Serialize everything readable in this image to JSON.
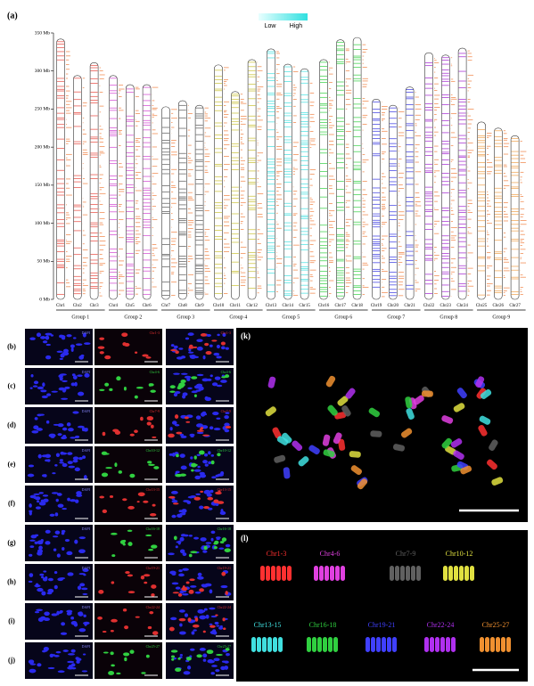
{
  "figure": {
    "panel_a": {
      "label": "(a)",
      "legend": {
        "low": "Low",
        "high": "High"
      },
      "ylim": [
        0,
        350
      ],
      "yticks": [
        {
          "value": 0,
          "label": "0 Mb"
        },
        {
          "value": 50,
          "label": "50 Mb"
        },
        {
          "value": 100,
          "label": "100 Mb"
        },
        {
          "value": 150,
          "label": "150 Mb"
        },
        {
          "value": 200,
          "label": "200 Mb"
        },
        {
          "value": 250,
          "label": "250 Mb"
        },
        {
          "value": 300,
          "label": "300 Mb"
        },
        {
          "value": 350,
          "label": "350 Mb"
        }
      ],
      "chromosomes": [
        {
          "name": "Chr1",
          "length": 342
        },
        {
          "name": "Chr2",
          "length": 294
        },
        {
          "name": "Chr3",
          "length": 311
        },
        {
          "name": "Chr4",
          "length": 294
        },
        {
          "name": "Chr5",
          "length": 282
        },
        {
          "name": "Chr6",
          "length": 282
        },
        {
          "name": "Chr7",
          "length": 253
        },
        {
          "name": "Chr8",
          "length": 261
        },
        {
          "name": "Chr9",
          "length": 255
        },
        {
          "name": "Chr10",
          "length": 308
        },
        {
          "name": "Chr11",
          "length": 273
        },
        {
          "name": "Chr12",
          "length": 315
        },
        {
          "name": "Chr13",
          "length": 329
        },
        {
          "name": "Chr14",
          "length": 309
        },
        {
          "name": "Chr15",
          "length": 303
        },
        {
          "name": "Chr16",
          "length": 315
        },
        {
          "name": "Chr17",
          "length": 341
        },
        {
          "name": "Chr18",
          "length": 344
        },
        {
          "name": "Chr19",
          "length": 263
        },
        {
          "name": "Chr20",
          "length": 255
        },
        {
          "name": "Chr21",
          "length": 279
        },
        {
          "name": "Chr22",
          "length": 324
        },
        {
          "name": "Chr23",
          "length": 321
        },
        {
          "name": "Chr24",
          "length": 330
        },
        {
          "name": "Chr25",
          "length": 233
        },
        {
          "name": "Chr26",
          "length": 225
        },
        {
          "name": "Chr27",
          "length": 215
        }
      ],
      "groups": [
        {
          "name": "Group 1",
          "color": "#e8453c"
        },
        {
          "name": "Group 2",
          "color": "#d040d0"
        },
        {
          "name": "Group 3",
          "color": "#555555"
        },
        {
          "name": "Group 4",
          "color": "#c8c030"
        },
        {
          "name": "Group 5",
          "color": "#40e0e0"
        },
        {
          "name": "Group 6",
          "color": "#30d040"
        },
        {
          "name": "Group 7",
          "color": "#3434e0"
        },
        {
          "name": "Group 8",
          "color": "#a020d0"
        },
        {
          "name": "Group 9",
          "color": "#f0a048"
        }
      ]
    },
    "fish_rows": [
      {
        "label": "(b)",
        "dapi": "DAPI",
        "probe": "Chr1-3",
        "color": "#e03030"
      },
      {
        "label": "(c)",
        "dapi": "DAPI",
        "probe": "Chr4-6",
        "color": "#30d040"
      },
      {
        "label": "(d)",
        "dapi": "DAPI",
        "probe": "Chr7-9",
        "color": "#e03030"
      },
      {
        "label": "(e)",
        "dapi": "DAPI",
        "probe": "Chr10-12",
        "color": "#30d040"
      },
      {
        "label": "(f)",
        "dapi": "DAPI",
        "probe": "Chr13-15",
        "color": "#e03030"
      },
      {
        "label": "(g)",
        "dapi": "DAPI",
        "probe": "Chr16-18",
        "color": "#30d040"
      },
      {
        "label": "(h)",
        "dapi": "DAPI",
        "probe": "Chr19-21",
        "color": "#e03030"
      },
      {
        "label": "(i)",
        "dapi": "DAPI",
        "probe": "Chr22-24",
        "color": "#e03030"
      },
      {
        "label": "(j)",
        "dapi": "DAPI",
        "probe": "Chr25-27",
        "color": "#30d040"
      }
    ],
    "panel_k": {
      "label": "(k)"
    },
    "panel_l": {
      "label": "(l)",
      "groups": [
        {
          "name": "Chr1-3",
          "color": "#ff3030"
        },
        {
          "name": "Chr4-6",
          "color": "#e040e0"
        },
        {
          "name": "Chr7-9",
          "color": "#606060"
        },
        {
          "name": "Chr10-12",
          "color": "#e0e040"
        },
        {
          "name": "Chr13-15",
          "color": "#40e0e0"
        },
        {
          "name": "Chr16-18",
          "color": "#30d040"
        },
        {
          "name": "Chr19-21",
          "color": "#4040ff"
        },
        {
          "name": "Chr22-24",
          "color": "#b030f0"
        },
        {
          "name": "Chr25-27",
          "color": "#f09030"
        }
      ]
    }
  }
}
